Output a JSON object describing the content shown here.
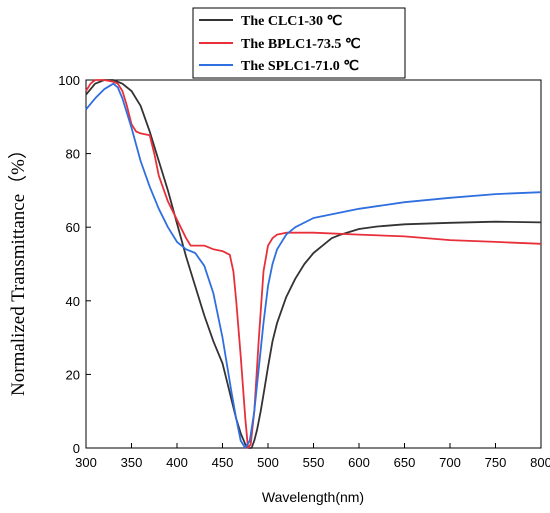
{
  "chart_data": {
    "type": "line",
    "title": "",
    "xlabel": "Wavelength(nm)",
    "ylabel": "Normalized Transmittance（%）",
    "xlim": [
      300,
      800
    ],
    "ylim": [
      0,
      100
    ],
    "xticks": [
      300,
      350,
      400,
      450,
      500,
      550,
      600,
      650,
      700,
      750,
      800
    ],
    "yticks": [
      0,
      20,
      40,
      60,
      80,
      100
    ],
    "grid": false,
    "legend_position": "top-center",
    "series": [
      {
        "name": "The CLC1-30 ℃",
        "color": "#333333",
        "x": [
          300,
          310,
          320,
          330,
          340,
          350,
          360,
          370,
          380,
          390,
          400,
          410,
          420,
          430,
          440,
          450,
          455,
          460,
          465,
          470,
          475,
          478,
          482,
          485,
          488,
          492,
          496,
          500,
          505,
          510,
          520,
          530,
          540,
          550,
          560,
          570,
          580,
          600,
          620,
          650,
          700,
          750,
          800
        ],
        "y": [
          96,
          99,
          100,
          100,
          99,
          97,
          93,
          86,
          78,
          70,
          61,
          52,
          44,
          36,
          29,
          23,
          18,
          13,
          8,
          4,
          1,
          0,
          0,
          2,
          5,
          10,
          16,
          22,
          29,
          34,
          41,
          46,
          50,
          53,
          55,
          57,
          58,
          59.5,
          60.2,
          60.8,
          61.2,
          61.5,
          61.3
        ]
      },
      {
        "name": "The BPLC1-73.5 ℃",
        "color": "#e8303a",
        "x": [
          300,
          305,
          310,
          320,
          330,
          335,
          340,
          345,
          350,
          355,
          360,
          370,
          375,
          380,
          390,
          400,
          410,
          415,
          420,
          430,
          440,
          450,
          458,
          462,
          465,
          470,
          475,
          478,
          481,
          485,
          490,
          495,
          500,
          505,
          510,
          520,
          550,
          600,
          650,
          700,
          750,
          800
        ],
        "y": [
          97,
          99,
          100,
          100,
          99.5,
          99,
          97,
          93,
          88,
          86,
          85.5,
          85,
          80,
          74,
          67,
          62,
          57,
          55,
          55,
          55,
          54,
          53.5,
          52.5,
          48,
          40,
          25,
          8,
          0,
          1,
          10,
          30,
          48,
          55,
          57,
          58,
          58.5,
          58.5,
          58,
          57.5,
          56.5,
          56,
          55.5
        ]
      },
      {
        "name": "The SPLC1-71.0 ℃",
        "color": "#2f6fe0",
        "x": [
          300,
          310,
          320,
          330,
          335,
          340,
          350,
          360,
          370,
          380,
          390,
          400,
          410,
          420,
          430,
          440,
          450,
          460,
          465,
          470,
          475,
          480,
          485,
          490,
          495,
          500,
          505,
          510,
          520,
          530,
          550,
          600,
          650,
          700,
          750,
          800
        ],
        "y": [
          92,
          95,
          97.5,
          99,
          98,
          95,
          87,
          78,
          71,
          65,
          60,
          56,
          54,
          53,
          49.5,
          42,
          30,
          15,
          8,
          2,
          0,
          2,
          10,
          22,
          34,
          44,
          50,
          54,
          58,
          60,
          62.5,
          65,
          66.8,
          68,
          69,
          69.5
        ]
      }
    ]
  }
}
